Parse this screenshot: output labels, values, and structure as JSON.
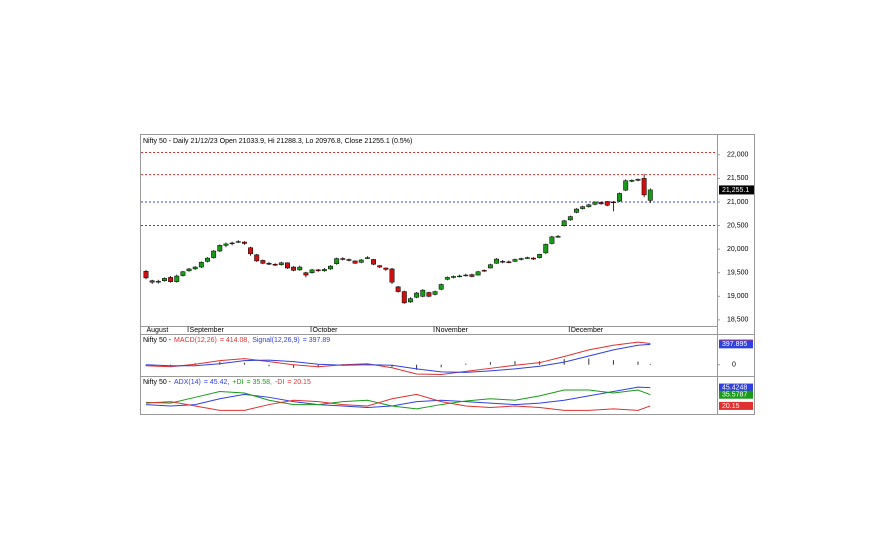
{
  "chart_data": [
    {
      "type": "candlestick",
      "title": "Nifty 50 - Daily 21/12/23 Open 21033.9, Hi 21288.3, Lo 20976.8, Close 21255.1 (0.5%)",
      "up_color": "#1a9a1a",
      "down_color": "#d01010",
      "candles": [
        [
          19530,
          19560,
          19360,
          19390
        ],
        [
          19330,
          19350,
          19260,
          19300
        ],
        [
          19300,
          19350,
          19270,
          19320
        ],
        [
          19330,
          19400,
          19310,
          19380
        ],
        [
          19400,
          19430,
          19290,
          19310
        ],
        [
          19310,
          19460,
          19290,
          19430
        ],
        [
          19440,
          19540,
          19420,
          19520
        ],
        [
          19540,
          19600,
          19520,
          19580
        ],
        [
          19580,
          19640,
          19560,
          19620
        ],
        [
          19620,
          19740,
          19600,
          19720
        ],
        [
          19740,
          19830,
          19720,
          19810
        ],
        [
          19820,
          19980,
          19800,
          19960
        ],
        [
          19960,
          20100,
          19940,
          20080
        ],
        [
          20080,
          20140,
          20040,
          20110
        ],
        [
          20120,
          20160,
          20080,
          20130
        ],
        [
          20150,
          20190,
          20130,
          20160
        ],
        [
          20150,
          20170,
          20090,
          20120
        ],
        [
          20030,
          20050,
          19860,
          19900
        ],
        [
          19880,
          19900,
          19730,
          19750
        ],
        [
          19760,
          19780,
          19680,
          19700
        ],
        [
          19700,
          19730,
          19660,
          19680
        ],
        [
          19680,
          19700,
          19640,
          19660
        ],
        [
          19670,
          19730,
          19650,
          19710
        ],
        [
          19710,
          19720,
          19580,
          19600
        ],
        [
          19620,
          19640,
          19530,
          19550
        ],
        [
          19560,
          19650,
          19540,
          19620
        ],
        [
          19500,
          19520,
          19400,
          19450
        ],
        [
          19500,
          19580,
          19480,
          19560
        ],
        [
          19560,
          19580,
          19520,
          19540
        ],
        [
          19540,
          19600,
          19520,
          19570
        ],
        [
          19580,
          19660,
          19560,
          19640
        ],
        [
          19690,
          19820,
          19670,
          19800
        ],
        [
          19800,
          19830,
          19760,
          19780
        ],
        [
          19780,
          19800,
          19740,
          19760
        ],
        [
          19750,
          19760,
          19690,
          19700
        ],
        [
          19720,
          19790,
          19700,
          19770
        ],
        [
          19800,
          19850,
          19790,
          19820
        ],
        [
          19780,
          19790,
          19660,
          19680
        ],
        [
          19650,
          19660,
          19600,
          19620
        ],
        [
          19600,
          19610,
          19540,
          19570
        ],
        [
          19580,
          19600,
          19260,
          19300
        ],
        [
          19200,
          19220,
          19080,
          19100
        ],
        [
          19100,
          19120,
          18840,
          18860
        ],
        [
          18880,
          18980,
          18860,
          18950
        ],
        [
          18980,
          19090,
          18960,
          19070
        ],
        [
          19000,
          19150,
          18980,
          19130
        ],
        [
          19080,
          19100,
          18980,
          19000
        ],
        [
          19040,
          19120,
          19020,
          19100
        ],
        [
          19150,
          19270,
          19130,
          19250
        ],
        [
          19360,
          19420,
          19340,
          19400
        ],
        [
          19400,
          19440,
          19380,
          19420
        ],
        [
          19430,
          19460,
          19400,
          19430
        ],
        [
          19440,
          19480,
          19420,
          19450
        ],
        [
          19460,
          19480,
          19400,
          19420
        ],
        [
          19450,
          19540,
          19440,
          19520
        ],
        [
          19550,
          19570,
          19520,
          19540
        ],
        [
          19600,
          19690,
          19590,
          19670
        ],
        [
          19700,
          19810,
          19690,
          19790
        ],
        [
          19740,
          19770,
          19700,
          19730
        ],
        [
          19730,
          19760,
          19700,
          19720
        ],
        [
          19740,
          19800,
          19730,
          19780
        ],
        [
          19780,
          19820,
          19760,
          19800
        ],
        [
          19800,
          19840,
          19790,
          19820
        ],
        [
          19810,
          19830,
          19770,
          19790
        ],
        [
          19820,
          19900,
          19800,
          19890
        ],
        [
          19920,
          20120,
          19900,
          20100
        ],
        [
          20120,
          20280,
          20100,
          20260
        ],
        [
          20260,
          20300,
          20240,
          20270
        ],
        [
          20500,
          20620,
          20480,
          20600
        ],
        [
          20620,
          20710,
          20600,
          20690
        ],
        [
          20780,
          20870,
          20760,
          20850
        ],
        [
          20860,
          20920,
          20840,
          20900
        ],
        [
          20900,
          20960,
          20880,
          20940
        ],
        [
          20950,
          21010,
          20930,
          21000
        ],
        [
          20990,
          21010,
          20940,
          20960
        ],
        [
          21010,
          21020,
          20910,
          20930
        ],
        [
          21000,
          21020,
          20800,
          20990
        ],
        [
          21020,
          21200,
          21000,
          21180
        ],
        [
          21250,
          21480,
          21230,
          21450
        ],
        [
          21440,
          21480,
          21420,
          21460
        ],
        [
          21460,
          21500,
          21440,
          21480
        ],
        [
          21500,
          21590,
          21100,
          21150
        ],
        [
          21033.9,
          21288.3,
          20976.8,
          21255.1
        ]
      ],
      "ylim": [
        18370,
        22420
      ],
      "yticks": [
        {
          "value": 18500,
          "label": "18,500"
        },
        {
          "value": 19000,
          "label": "19,000"
        },
        {
          "value": 19500,
          "label": "19,500"
        },
        {
          "value": 20000,
          "label": "20,000"
        },
        {
          "value": 20500,
          "label": "20,500"
        },
        {
          "value": 21000,
          "label": "21,000"
        },
        {
          "value": 21500,
          "label": "21,500"
        },
        {
          "value": 22000,
          "label": "22,000"
        }
      ],
      "levels": [
        {
          "value": 22050,
          "color": "#e03030"
        },
        {
          "value": 21580,
          "color": "#e03030"
        },
        {
          "value": 21000,
          "color": "#3040e0"
        },
        {
          "value": 20500,
          "color": "#3040e0"
        }
      ],
      "last_label": {
        "value": 21255.1,
        "label": "21,255.1"
      },
      "month_labels": [
        {
          "index": 0,
          "label": "August"
        },
        {
          "index": 7,
          "label": "September"
        },
        {
          "index": 27,
          "label": "October"
        },
        {
          "index": 47,
          "label": "November"
        },
        {
          "index": 69,
          "label": "December"
        }
      ]
    },
    {
      "type": "macd",
      "title_prefix": "Nifty 50 -",
      "series": [
        {
          "name": "MACD(12,26)",
          "readout": "= 414.08,",
          "color": "#e03030",
          "x": [
            0,
            4,
            8,
            12,
            16,
            20,
            24,
            28,
            32,
            36,
            40,
            44,
            48,
            52,
            56,
            60,
            64,
            68,
            72,
            76,
            80,
            82
          ],
          "values": [
            -20,
            -40,
            10,
            80,
            120,
            60,
            0,
            -40,
            0,
            20,
            -60,
            -180,
            -190,
            -130,
            -70,
            -10,
            40,
            160,
            290,
            380,
            440,
            414.08
          ]
        },
        {
          "name": "Signal(12,26,9)",
          "readout": "= 397.89",
          "color": "#3040e0",
          "x": [
            0,
            4,
            8,
            12,
            16,
            20,
            24,
            28,
            32,
            36,
            40,
            44,
            48,
            52,
            56,
            60,
            64,
            68,
            72,
            76,
            80,
            82
          ],
          "values": [
            0,
            -20,
            -20,
            20,
            80,
            90,
            60,
            10,
            -10,
            0,
            -10,
            -80,
            -140,
            -150,
            -120,
            -80,
            -30,
            50,
            170,
            290,
            380,
            397.89
          ]
        }
      ],
      "histogram": {
        "color": "#333333",
        "x": [
          0,
          4,
          8,
          12,
          16,
          20,
          24,
          28,
          32,
          36,
          40,
          44,
          48,
          52,
          56,
          60,
          64,
          68,
          72,
          76,
          80,
          82
        ],
        "values": [
          -20,
          -20,
          30,
          60,
          40,
          -30,
          -60,
          -50,
          10,
          20,
          -50,
          -100,
          -50,
          20,
          50,
          70,
          70,
          110,
          120,
          90,
          60,
          16
        ]
      },
      "ylim": [
        -220,
        580
      ],
      "yticks": [
        0
      ],
      "value_boxes": [
        {
          "value": 414.08,
          "label": "414.08",
          "color": "#e03030"
        },
        {
          "value": 397.895,
          "label": "397.895",
          "color": "#3040e0"
        }
      ]
    },
    {
      "type": "line",
      "title_prefix": "Nifty 50 -",
      "series": [
        {
          "name": "ADX(14)",
          "readout": "= 45.42,",
          "color": "#3040e0",
          "x": [
            0,
            4,
            8,
            12,
            16,
            20,
            24,
            28,
            32,
            36,
            40,
            44,
            48,
            52,
            56,
            60,
            64,
            68,
            72,
            76,
            80,
            82
          ],
          "values": [
            22,
            20,
            22,
            30,
            36,
            32,
            26,
            22,
            20,
            18,
            20,
            26,
            28,
            26,
            24,
            22,
            24,
            28,
            34,
            40,
            46,
            45.42
          ]
        },
        {
          "name": "+DI",
          "readout": "= 35.58,",
          "color": "#1a9a1a",
          "x": [
            0,
            4,
            8,
            12,
            16,
            20,
            24,
            28,
            32,
            36,
            40,
            44,
            48,
            52,
            56,
            60,
            64,
            68,
            72,
            76,
            80,
            82
          ],
          "values": [
            25,
            24,
            32,
            40,
            38,
            28,
            22,
            22,
            26,
            28,
            20,
            16,
            22,
            27,
            30,
            28,
            34,
            42,
            42,
            38,
            42,
            35.58
          ]
        },
        {
          "name": "-DI",
          "readout": "= 20.15",
          "color": "#e03030",
          "x": [
            0,
            4,
            8,
            12,
            16,
            20,
            24,
            28,
            32,
            36,
            40,
            44,
            48,
            52,
            56,
            60,
            64,
            68,
            72,
            76,
            80,
            82
          ],
          "values": [
            24,
            26,
            20,
            14,
            14,
            22,
            28,
            26,
            22,
            20,
            30,
            36,
            26,
            20,
            18,
            20,
            18,
            14,
            14,
            16,
            14,
            20.15
          ]
        }
      ],
      "ylim": [
        9,
        60
      ],
      "value_boxes": [
        {
          "value": 45.4248,
          "label": "45.4248",
          "color": "#3040e0"
        },
        {
          "value": 35.5787,
          "label": "35.5787",
          "color": "#1a9a1a"
        },
        {
          "value": 20.15,
          "label": "20.15",
          "color": "#e03030"
        }
      ]
    }
  ]
}
